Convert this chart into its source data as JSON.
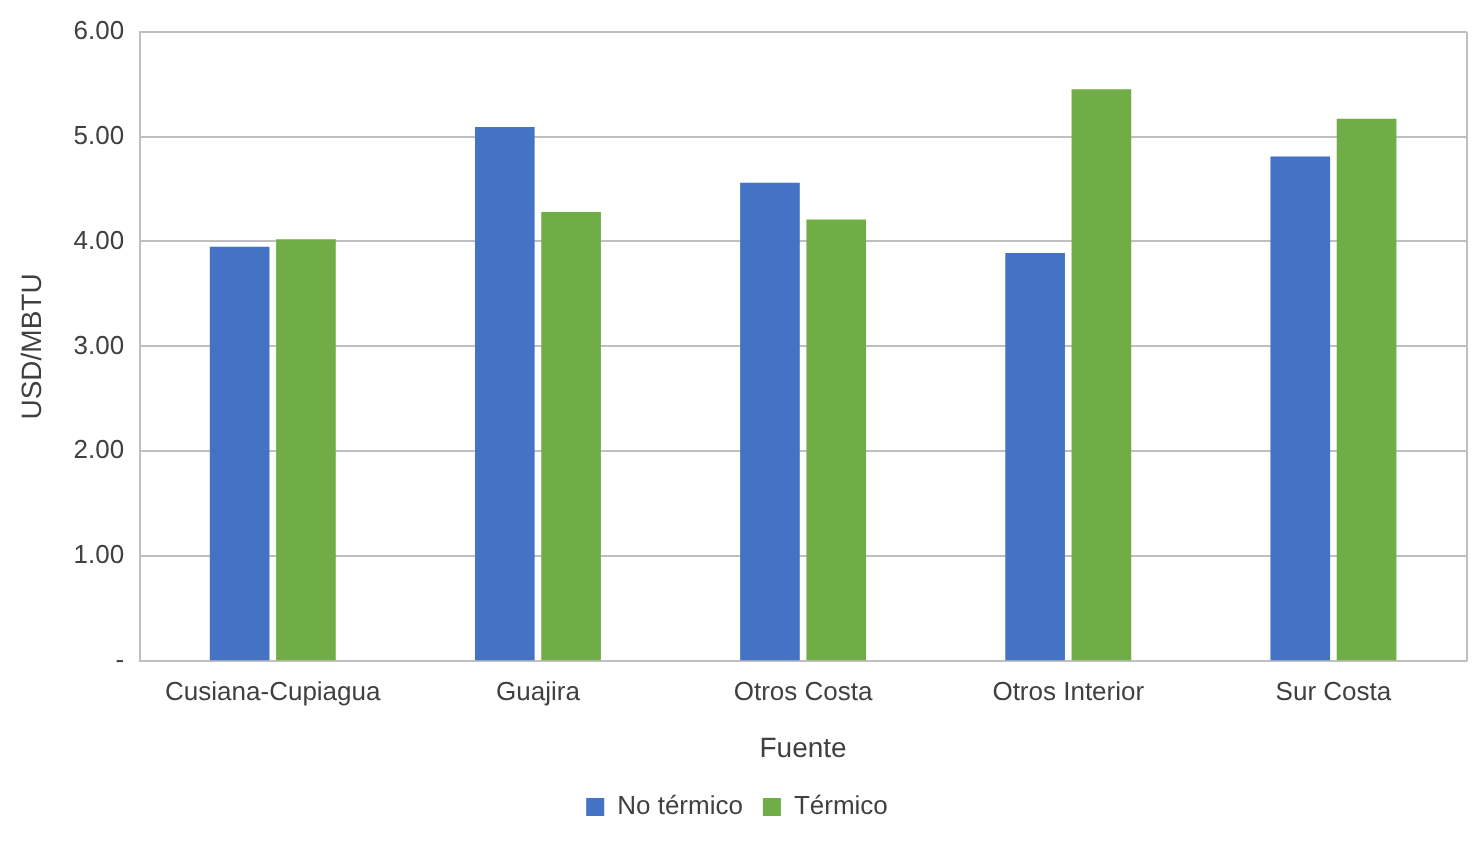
{
  "chart_data": {
    "type": "bar",
    "xlabel": "Fuente",
    "ylabel": "USD/MBTU",
    "categories": [
      "Cusiana-Cupiagua",
      "Guajira",
      "Otros Costa",
      "Otros Interior",
      "Sur Costa"
    ],
    "series": [
      {
        "name": "No térmico",
        "color": "#4472c4",
        "values": [
          3.95,
          5.09,
          4.56,
          3.89,
          4.81
        ]
      },
      {
        "name": "Térmico",
        "color": "#70ad47",
        "values": [
          4.02,
          4.28,
          4.21,
          5.45,
          5.17
        ]
      }
    ],
    "ylim": [
      0,
      6
    ],
    "yticks": [
      {
        "value": 0,
        "label": "-"
      },
      {
        "value": 1,
        "label": "1.00"
      },
      {
        "value": 2,
        "label": "2.00"
      },
      {
        "value": 3,
        "label": "3.00"
      },
      {
        "value": 4,
        "label": "4.00"
      },
      {
        "value": 5,
        "label": "5.00"
      },
      {
        "value": 6,
        "label": "6.00"
      }
    ],
    "grid": "y",
    "legend": "bottom"
  }
}
